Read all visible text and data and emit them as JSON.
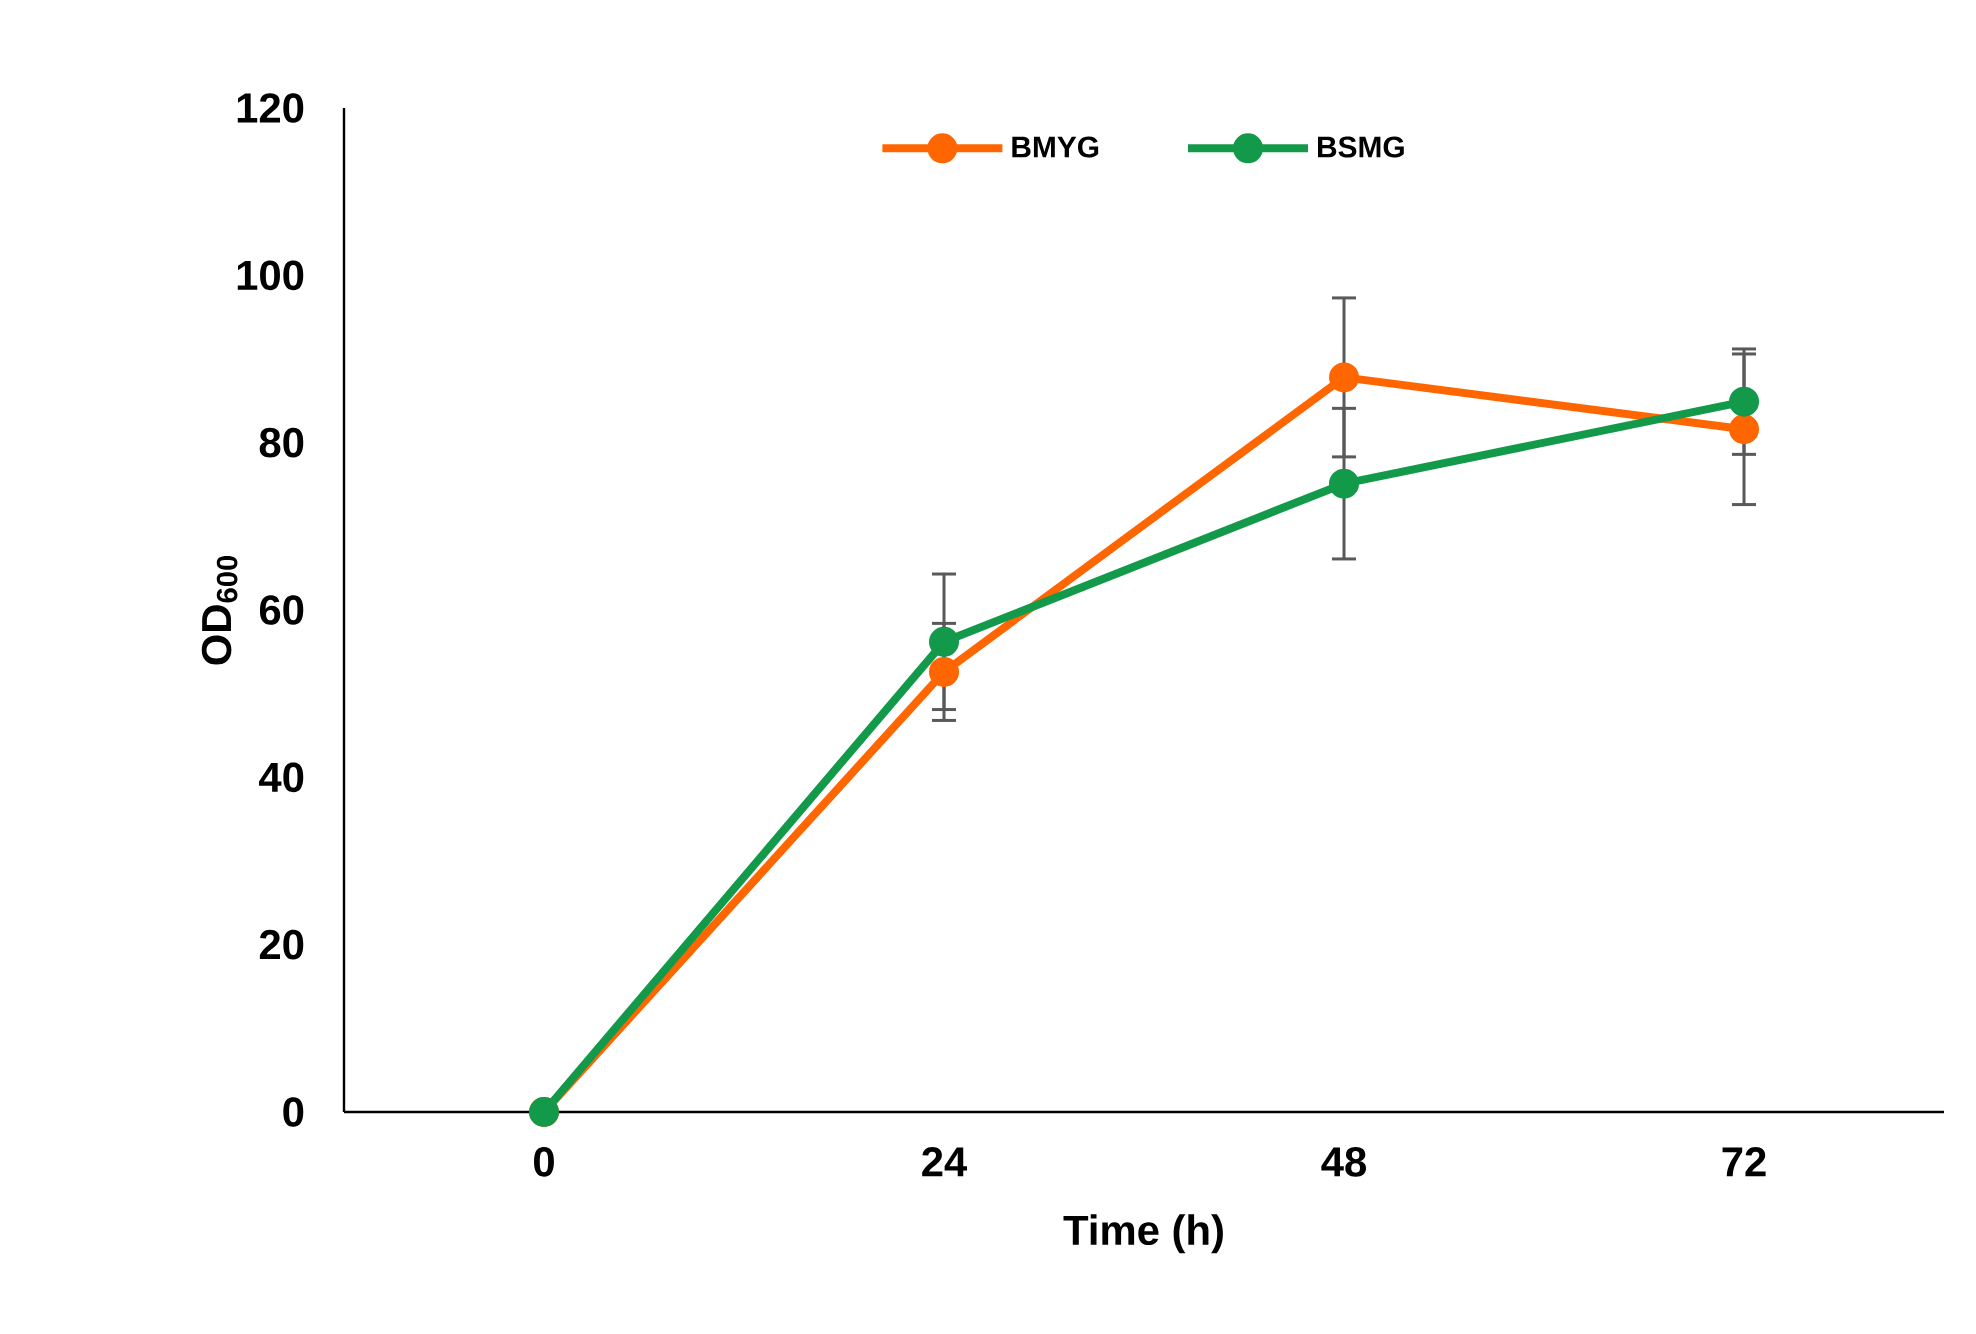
{
  "chart_data": {
    "type": "line",
    "xlabel": "Time (h)",
    "ylabel": "OD$_{600}$",
    "categories": [
      "0",
      "24",
      "48",
      "72"
    ],
    "series": [
      {
        "name": "BMYG",
        "color": "#ff6600",
        "values": [
          0,
          52.6,
          87.8,
          81.6
        ],
        "errors": [
          null,
          5.8,
          9.5,
          9
        ]
      },
      {
        "name": "BSMG",
        "color": "#129a4a",
        "values": [
          0,
          56.2,
          75.1,
          84.9
        ],
        "errors": [
          null,
          8.1,
          9,
          6.3
        ]
      }
    ],
    "ylim": [
      0,
      120
    ],
    "yticks": [
      0,
      20,
      40,
      60,
      80,
      100,
      120
    ],
    "grid": false,
    "legend": "top",
    "marker": "circle",
    "line_style": "solid"
  }
}
